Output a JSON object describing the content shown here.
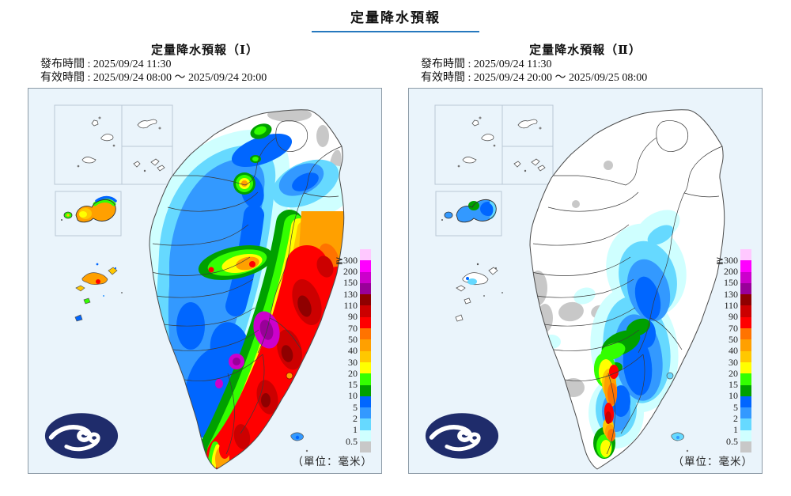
{
  "page": {
    "title": "定量降水預報"
  },
  "panels": [
    {
      "title": "定量降水預報（Ⅰ）",
      "issued": "發布時間 : 2025/09/24 11:30",
      "valid": "有效時間 : 2025/09/24 08:00 ～ 2025/09/24 20:00",
      "unit_note": "（單位：毫米）"
    },
    {
      "title": "定量降水預報（Ⅱ）",
      "issued": "發布時間 : 2025/09/24 11:30",
      "valid": "有效時間 : 2025/09/24 20:00 ～ 2025/09/25 08:00",
      "unit_note": "（單位：毫米）"
    }
  ],
  "legend": {
    "labels": [
      "≧300",
      "200",
      "150",
      "130",
      "110",
      "90",
      "70",
      "50",
      "40",
      "30",
      "20",
      "15",
      "10",
      "5",
      "2",
      "1",
      "0.5"
    ],
    "colors": [
      "#FFC8FF",
      "#FF00FF",
      "#CC00CC",
      "#990099",
      "#8F0000",
      "#CC0000",
      "#FF0000",
      "#FF7300",
      "#FFA000",
      "#FFC800",
      "#FFFF00",
      "#33FF00",
      "#00A000",
      "#0066FF",
      "#3399FF",
      "#66D9FF",
      "#CFFFFF",
      "#C8C8C8"
    ]
  },
  "colors": {
    "accent_underline": "#2678BE",
    "sea": "#EAF4FB",
    "panel_border": "#8C9AA6",
    "logo_navy": "#1F2C6B"
  }
}
